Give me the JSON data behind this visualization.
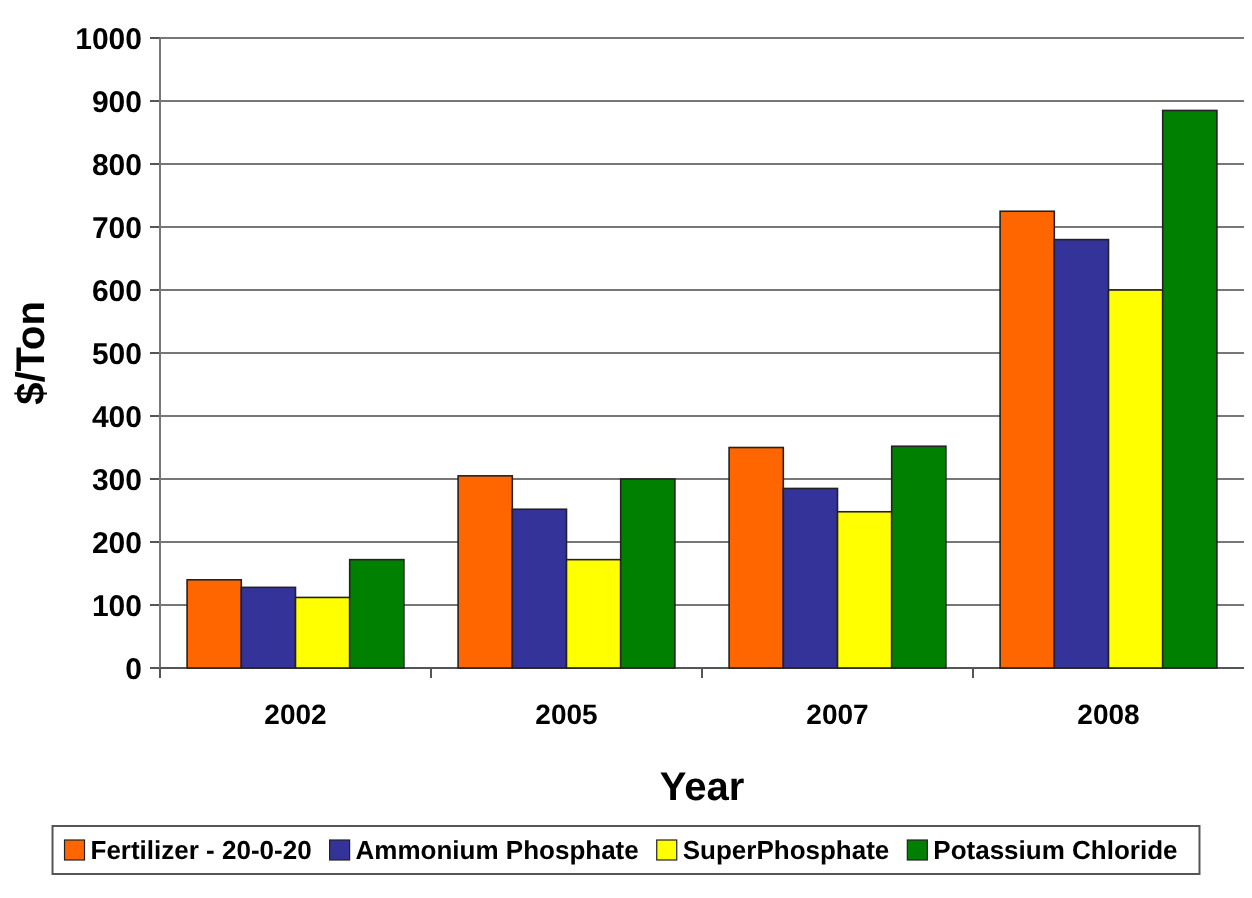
{
  "chart_data": {
    "type": "bar",
    "xlabel": "Year",
    "ylabel": "$/Ton",
    "categories": [
      "2002",
      "2005",
      "2007",
      "2008"
    ],
    "series": [
      {
        "name": "Fertilizer - 20-0-20",
        "color": "#ff6600",
        "values": [
          140,
          305,
          350,
          725
        ]
      },
      {
        "name": "Ammonium Phosphate",
        "color": "#333399",
        "values": [
          128,
          252,
          285,
          680
        ]
      },
      {
        "name": "SuperPhosphate",
        "color": "#ffff00",
        "values": [
          112,
          172,
          248,
          600
        ]
      },
      {
        "name": "Potassium Chloride",
        "color": "#008000",
        "values": [
          172,
          300,
          352,
          885
        ]
      }
    ],
    "ylim": [
      0,
      1000
    ],
    "yticks": [
      0,
      100,
      200,
      300,
      400,
      500,
      600,
      700,
      800,
      900,
      1000
    ],
    "grid": "y",
    "legend": "bottom"
  }
}
